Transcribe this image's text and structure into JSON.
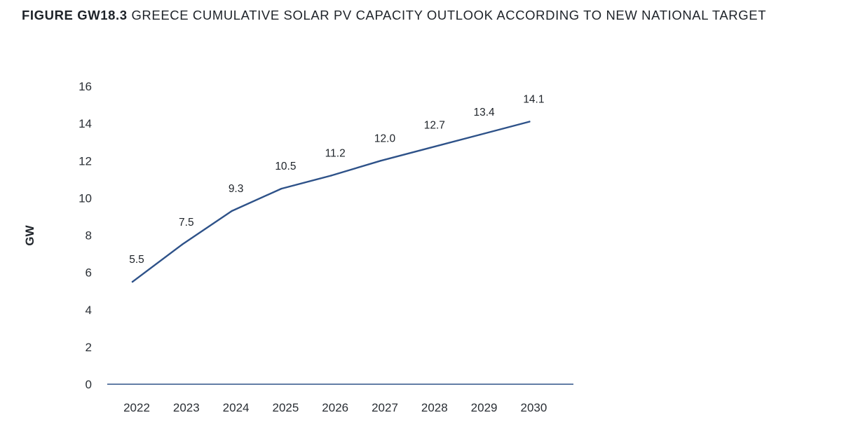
{
  "figure": {
    "number": "FIGURE GW18.3",
    "title": "GREECE CUMULATIVE SOLAR PV CAPACITY OUTLOOK ACCORDING TO NEW NATIONAL TARGET"
  },
  "chart_data": {
    "type": "line",
    "categories": [
      "2022",
      "2023",
      "2024",
      "2025",
      "2026",
      "2027",
      "2028",
      "2029",
      "2030"
    ],
    "series": [
      {
        "values": [
          5.5,
          7.5,
          9.3,
          10.5,
          11.2,
          12.0,
          12.7,
          13.4,
          14.1
        ],
        "labels": [
          "5.5",
          "7.5",
          "9.3",
          "10.5",
          "11.2",
          "12.0",
          "12.7",
          "13.4",
          "14.1"
        ],
        "color": "#2e5289"
      }
    ],
    "ylabel": "GW",
    "xlabel": "",
    "ylim": [
      0,
      16
    ],
    "yticks": [
      "0",
      "2",
      "4",
      "6",
      "8",
      "10",
      "12",
      "14",
      "16"
    ],
    "ytick_values": [
      0,
      2,
      4,
      6,
      8,
      10,
      12,
      14,
      16
    ],
    "grid": false,
    "legend": "none",
    "axis_color": "#2e5289"
  }
}
